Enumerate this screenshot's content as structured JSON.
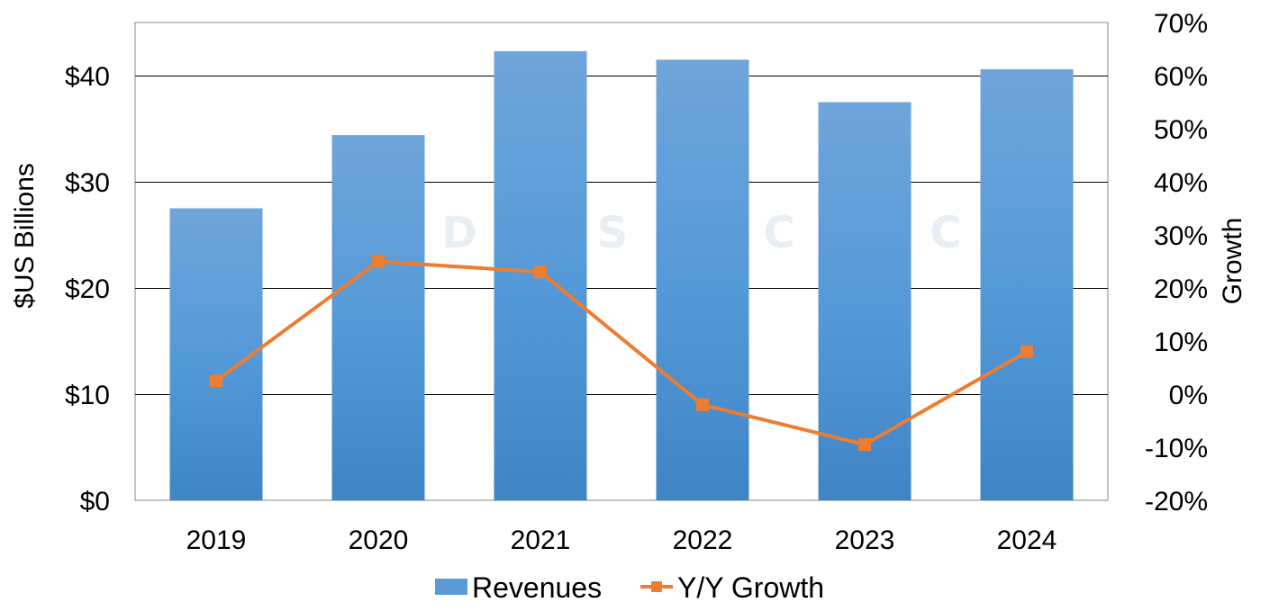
{
  "chart_data": {
    "type": "bar",
    "title": "",
    "categories": [
      "2019",
      "2020",
      "2021",
      "2022",
      "2023",
      "2024"
    ],
    "series": [
      {
        "name": "Revenues",
        "type": "bar",
        "axis": "left",
        "color": "#5b9bd5",
        "values": [
          27.5,
          34.4,
          42.3,
          41.5,
          37.5,
          40.6
        ]
      },
      {
        "name": "Y/Y Growth",
        "type": "line",
        "axis": "right",
        "color": "#ed7d31",
        "marker": "square",
        "values": [
          2.5,
          25.0,
          23.0,
          -2.0,
          -9.5,
          8.0
        ]
      }
    ],
    "ylabel": "$US Billions",
    "y2label": "Growth",
    "ylim": [
      0,
      45
    ],
    "y_ticks": [
      "$0",
      "$10",
      "$20",
      "$30",
      "$40"
    ],
    "y_tick_values": [
      0,
      10,
      20,
      30,
      40
    ],
    "y2lim": [
      -20,
      70
    ],
    "y2_ticks": [
      "-20%",
      "-10%",
      "0%",
      "10%",
      "20%",
      "30%",
      "40%",
      "50%",
      "60%",
      "70%"
    ],
    "y2_tick_values": [
      -20,
      -10,
      0,
      10,
      20,
      30,
      40,
      50,
      60,
      70
    ],
    "grid": true,
    "legend": "bottom",
    "watermark": [
      "D",
      "S",
      "C",
      "C"
    ]
  }
}
